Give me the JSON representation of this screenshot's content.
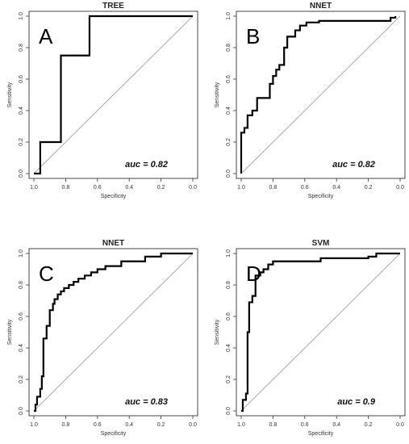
{
  "chart_data": [
    {
      "type": "line",
      "title": "TREE",
      "panel_letter": "A",
      "annotation": "auc = 0.82",
      "xlabel": "Specificity",
      "ylabel": "Sensitivity",
      "xlim": [
        1.0,
        0.0
      ],
      "ylim": [
        0.0,
        1.0
      ],
      "x_ticks": [
        "1.0",
        "0.8",
        "0.6",
        "0.4",
        "0.2",
        "0.0"
      ],
      "y_ticks": [
        "0.0",
        "0.2",
        "0.4",
        "0.6",
        "0.8",
        "1.0"
      ],
      "diagonal": true,
      "series": [
        {
          "specificity": [
            1.0,
            0.96,
            0.96,
            0.83,
            0.83,
            0.65,
            0.65,
            0.0
          ],
          "sensitivity": [
            0.0,
            0.0,
            0.2,
            0.2,
            0.75,
            0.75,
            1.0,
            1.0
          ]
        }
      ]
    },
    {
      "type": "line",
      "title": "NNET",
      "panel_letter": "B",
      "annotation": "auc = 0.82",
      "xlabel": "Specificity",
      "ylabel": "Sensitivity",
      "xlim": [
        1.0,
        0.0
      ],
      "ylim": [
        0.0,
        1.0
      ],
      "x_ticks": [
        "1.0",
        "0.8",
        "0.6",
        "0.4",
        "0.2",
        "0.0"
      ],
      "y_ticks": [
        "0.0",
        "0.2",
        "0.4",
        "0.6",
        "0.8",
        "1.0"
      ],
      "diagonal": true,
      "series": [
        {
          "specificity": [
            1.0,
            1.0,
            0.98,
            0.98,
            0.96,
            0.96,
            0.93,
            0.93,
            0.9,
            0.9,
            0.87,
            0.87,
            0.82,
            0.82,
            0.8,
            0.8,
            0.78,
            0.78,
            0.76,
            0.76,
            0.73,
            0.73,
            0.71,
            0.71,
            0.66,
            0.66,
            0.63,
            0.63,
            0.59,
            0.59,
            0.51,
            0.51,
            0.06,
            0.06,
            0.03,
            0.03
          ],
          "sensitivity": [
            0.0,
            0.26,
            0.26,
            0.29,
            0.29,
            0.37,
            0.37,
            0.4,
            0.4,
            0.48,
            0.48,
            0.48,
            0.48,
            0.57,
            0.57,
            0.62,
            0.62,
            0.66,
            0.66,
            0.69,
            0.69,
            0.8,
            0.8,
            0.87,
            0.87,
            0.91,
            0.91,
            0.94,
            0.94,
            0.96,
            0.96,
            0.97,
            0.97,
            0.99,
            0.99,
            1.0
          ]
        }
      ]
    },
    {
      "type": "line",
      "title": "NNET",
      "panel_letter": "C",
      "annotation": "auc = 0.83",
      "xlabel": "Specificity",
      "ylabel": "Sensitivity",
      "xlim": [
        1.0,
        0.0
      ],
      "ylim": [
        0.0,
        1.0
      ],
      "x_ticks": [
        "1.0",
        "0.8",
        "0.6",
        "0.4",
        "0.2",
        "0.0"
      ],
      "y_ticks": [
        "0.0",
        "0.2",
        "0.4",
        "0.6",
        "0.8",
        "1.0"
      ],
      "diagonal": true,
      "series": [
        {
          "specificity": [
            1.0,
            0.99,
            0.99,
            0.98,
            0.98,
            0.96,
            0.96,
            0.95,
            0.95,
            0.94,
            0.94,
            0.92,
            0.92,
            0.9,
            0.9,
            0.88,
            0.88,
            0.87,
            0.87,
            0.85,
            0.85,
            0.83,
            0.83,
            0.81,
            0.81,
            0.78,
            0.78,
            0.75,
            0.75,
            0.72,
            0.72,
            0.68,
            0.68,
            0.64,
            0.64,
            0.6,
            0.6,
            0.55,
            0.55,
            0.45,
            0.45,
            0.3,
            0.3,
            0.2,
            0.2,
            0.0
          ],
          "sensitivity": [
            0.0,
            0.0,
            0.04,
            0.04,
            0.09,
            0.09,
            0.14,
            0.14,
            0.22,
            0.22,
            0.46,
            0.46,
            0.54,
            0.54,
            0.64,
            0.64,
            0.68,
            0.68,
            0.71,
            0.71,
            0.74,
            0.74,
            0.76,
            0.76,
            0.78,
            0.78,
            0.8,
            0.8,
            0.82,
            0.82,
            0.84,
            0.84,
            0.86,
            0.86,
            0.88,
            0.88,
            0.9,
            0.9,
            0.92,
            0.92,
            0.95,
            0.95,
            0.98,
            0.98,
            1.0,
            1.0
          ]
        }
      ]
    },
    {
      "type": "line",
      "title": "SVM",
      "panel_letter": "D",
      "annotation": "auc = 0.9",
      "xlabel": "Specificity",
      "ylabel": "Sensitivity",
      "xlim": [
        1.0,
        0.0
      ],
      "ylim": [
        0.0,
        1.0
      ],
      "x_ticks": [
        "1.0",
        "0.8",
        "0.6",
        "0.4",
        "0.2",
        "0.0"
      ],
      "y_ticks": [
        "0.0",
        "0.2",
        "0.4",
        "0.6",
        "0.8",
        "1.0"
      ],
      "diagonal": true,
      "series": [
        {
          "specificity": [
            1.0,
            0.99,
            0.99,
            0.97,
            0.97,
            0.96,
            0.96,
            0.95,
            0.95,
            0.93,
            0.93,
            0.91,
            0.91,
            0.88,
            0.88,
            0.86,
            0.86,
            0.83,
            0.83,
            0.8,
            0.8,
            0.5,
            0.5,
            0.2,
            0.2,
            0.15,
            0.15,
            0.0
          ],
          "sensitivity": [
            0.0,
            0.0,
            0.07,
            0.07,
            0.11,
            0.11,
            0.5,
            0.5,
            0.69,
            0.69,
            0.73,
            0.73,
            0.86,
            0.86,
            0.88,
            0.88,
            0.9,
            0.9,
            0.93,
            0.93,
            0.95,
            0.95,
            0.97,
            0.97,
            0.98,
            0.98,
            1.0,
            1.0
          ]
        }
      ]
    }
  ]
}
